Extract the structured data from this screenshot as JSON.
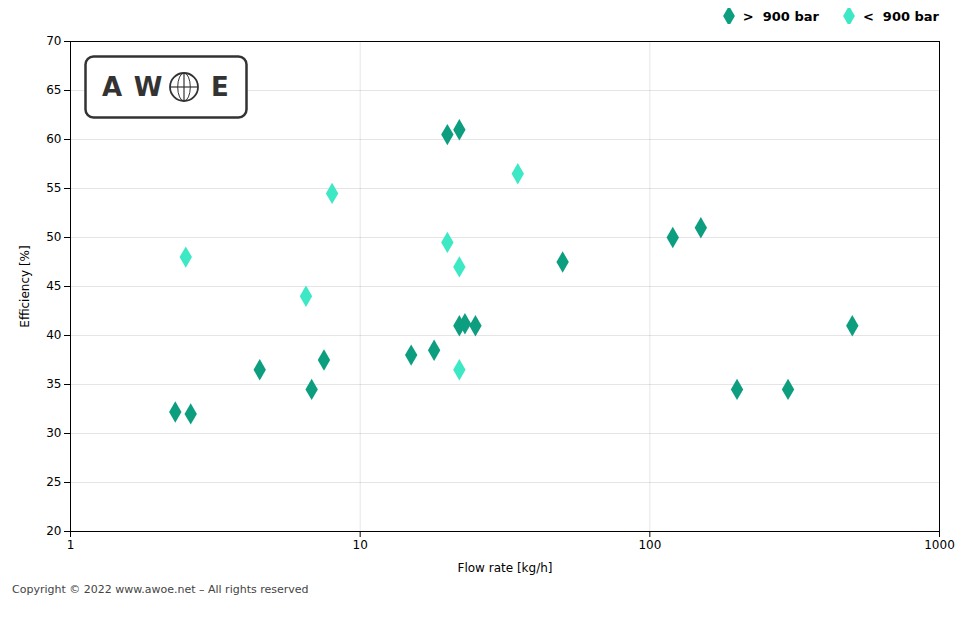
{
  "chart_data": {
    "type": "scatter",
    "xlabel": "Flow rate [kg/h]",
    "ylabel": "Efficiency [%]",
    "log": "x",
    "xlim": [
      1,
      1000
    ],
    "xticks": [
      1,
      10,
      100,
      1000
    ],
    "ylim": [
      20,
      70
    ],
    "yticks": [
      20,
      25,
      30,
      35,
      40,
      45,
      50,
      55,
      60,
      65,
      70
    ],
    "grid": true,
    "legend": "upper right",
    "annotations": [
      "A",
      "W",
      "E"
    ],
    "caption": "Copyright © 2022 www.awoe.net – All rights reserved",
    "series": [
      {
        "name": ">  900 bar",
        "color": "#0d9e80",
        "marker": "diamond",
        "x": [
          2.3,
          2.6,
          4.5,
          6.8,
          7.5,
          15,
          18,
          20,
          22,
          22,
          23,
          25,
          50,
          120,
          150,
          200,
          300,
          500
        ],
        "values": [
          32.2,
          32.0,
          36.5,
          34.5,
          37.5,
          38.0,
          38.5,
          60.5,
          61.0,
          41.0,
          41.2,
          41.0,
          47.5,
          50.0,
          51.0,
          34.5,
          34.5,
          41.0
        ]
      },
      {
        "name": "<  900 bar",
        "color": "#3de8c5",
        "marker": "diamond",
        "x": [
          2.5,
          6.5,
          8,
          20,
          22,
          35,
          22
        ],
        "values": [
          48.0,
          44.0,
          54.5,
          49.5,
          47.0,
          56.5,
          36.5
        ]
      }
    ]
  }
}
